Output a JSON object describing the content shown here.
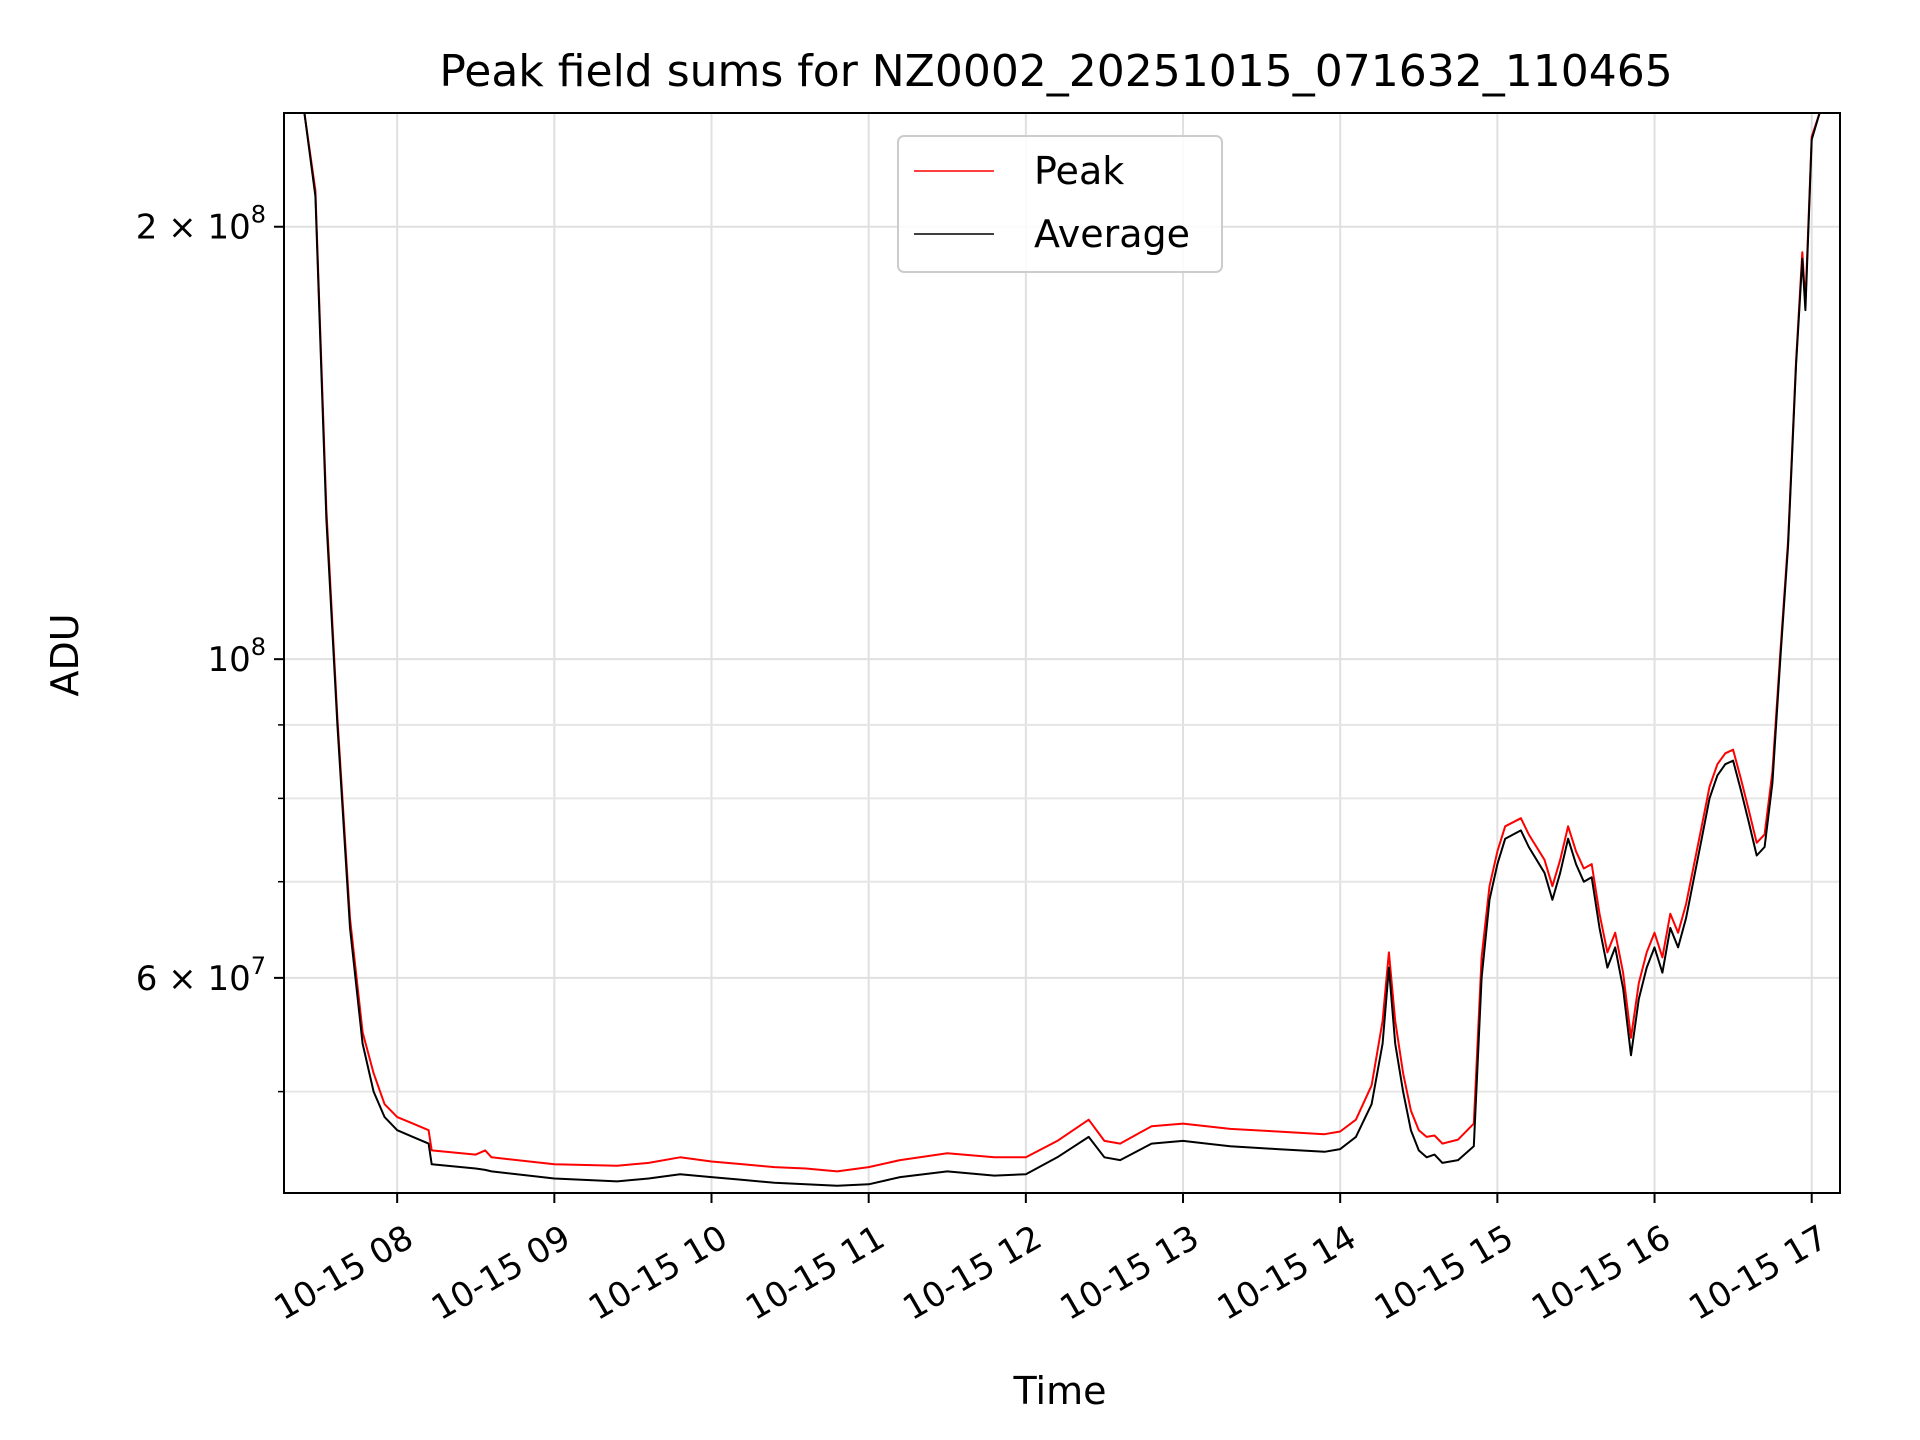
{
  "chart_data": {
    "type": "line",
    "title": "Peak field sums for NZ0002_20251015_071632_110465",
    "xlabel": "Time",
    "ylabel": "ADU",
    "yscale": "log",
    "xlim": [
      7.28,
      17.18
    ],
    "ylim": [
      42500000,
      240000000
    ],
    "grid": true,
    "legend_position": "upper-center",
    "x_ticks": [
      {
        "value": 8,
        "label": "10-15 08"
      },
      {
        "value": 9,
        "label": "10-15 09"
      },
      {
        "value": 10,
        "label": "10-15 10"
      },
      {
        "value": 11,
        "label": "10-15 11"
      },
      {
        "value": 12,
        "label": "10-15 12"
      },
      {
        "value": 13,
        "label": "10-15 13"
      },
      {
        "value": 14,
        "label": "10-15 14"
      },
      {
        "value": 15,
        "label": "10-15 15"
      },
      {
        "value": 16,
        "label": "10-15 16"
      },
      {
        "value": 17,
        "label": "10-15 17"
      }
    ],
    "y_major_ticks": [
      {
        "value": 200000000,
        "base": "2 × 10",
        "exp": "8"
      },
      {
        "value": 100000000,
        "base": "10",
        "exp": "8"
      },
      {
        "value": 60000000,
        "base": "6 × 10",
        "exp": "7"
      }
    ],
    "y_minor_ticks": [
      50000000,
      70000000,
      80000000,
      90000000
    ],
    "legend": [
      "Peak",
      "Average"
    ],
    "series": [
      {
        "name": "Average",
        "color": "#000000",
        "x": [
          7.41,
          7.48,
          7.55,
          7.62,
          7.7,
          7.78,
          7.85,
          7.92,
          8.0,
          8.1,
          8.2,
          8.22,
          8.5,
          8.56,
          8.6,
          9.0,
          9.4,
          9.6,
          9.8,
          10.0,
          10.2,
          10.4,
          10.6,
          10.8,
          11.0,
          11.2,
          11.5,
          11.8,
          12.0,
          12.2,
          12.4,
          12.5,
          12.6,
          12.8,
          13.0,
          13.3,
          13.6,
          13.9,
          14.0,
          14.1,
          14.2,
          14.27,
          14.31,
          14.35,
          14.4,
          14.45,
          14.5,
          14.55,
          14.6,
          14.65,
          14.75,
          14.85,
          14.9,
          14.95,
          15.0,
          15.05,
          15.15,
          15.2,
          15.3,
          15.35,
          15.4,
          15.45,
          15.5,
          15.55,
          15.6,
          15.65,
          15.7,
          15.75,
          15.8,
          15.85,
          15.9,
          15.95,
          16.0,
          16.05,
          16.1,
          16.15,
          16.2,
          16.3,
          16.35,
          16.4,
          16.45,
          16.5,
          16.55,
          16.6,
          16.65,
          16.7,
          16.75,
          16.8,
          16.85,
          16.9,
          16.94,
          16.96,
          17.0,
          17.05
        ],
        "values": [
          240000000,
          210000000,
          125000000,
          90000000,
          65000000,
          54000000,
          50000000,
          48000000,
          47000000,
          46500000,
          46000000,
          44500000,
          44200000,
          44100000,
          44000000,
          43500000,
          43300000,
          43500000,
          43800000,
          43600000,
          43400000,
          43200000,
          43100000,
          43000000,
          43100000,
          43600000,
          44000000,
          43700000,
          43800000,
          45000000,
          46500000,
          45000000,
          44800000,
          46000000,
          46200000,
          45800000,
          45600000,
          45400000,
          45600000,
          46500000,
          49000000,
          54000000,
          61000000,
          54000000,
          50000000,
          47000000,
          45500000,
          45000000,
          45200000,
          44600000,
          44800000,
          45800000,
          60000000,
          68000000,
          72000000,
          75000000,
          76000000,
          74000000,
          71000000,
          68000000,
          71000000,
          75000000,
          72000000,
          70000000,
          70500000,
          65000000,
          61000000,
          63000000,
          59000000,
          53000000,
          58000000,
          61000000,
          63000000,
          60500000,
          65000000,
          63000000,
          66000000,
          75000000,
          80000000,
          83000000,
          84500000,
          85000000,
          81000000,
          77000000,
          73000000,
          74000000,
          82000000,
          100000000,
          120000000,
          160000000,
          190000000,
          175000000,
          230000000,
          240000000
        ]
      },
      {
        "name": "Peak",
        "color": "#ff0000",
        "x": [
          7.41,
          7.48,
          7.55,
          7.62,
          7.7,
          7.78,
          7.85,
          7.92,
          8.0,
          8.1,
          8.2,
          8.22,
          8.5,
          8.56,
          8.6,
          9.0,
          9.4,
          9.6,
          9.8,
          10.0,
          10.2,
          10.4,
          10.6,
          10.8,
          11.0,
          11.2,
          11.5,
          11.8,
          12.0,
          12.2,
          12.4,
          12.5,
          12.6,
          12.8,
          13.0,
          13.3,
          13.6,
          13.9,
          14.0,
          14.1,
          14.2,
          14.27,
          14.31,
          14.35,
          14.4,
          14.45,
          14.5,
          14.55,
          14.6,
          14.65,
          14.75,
          14.85,
          14.9,
          14.95,
          15.0,
          15.05,
          15.15,
          15.2,
          15.3,
          15.35,
          15.4,
          15.45,
          15.5,
          15.55,
          15.6,
          15.65,
          15.7,
          15.75,
          15.8,
          15.85,
          15.9,
          15.95,
          16.0,
          16.05,
          16.1,
          16.15,
          16.2,
          16.3,
          16.35,
          16.4,
          16.45,
          16.5,
          16.55,
          16.6,
          16.65,
          16.7,
          16.75,
          16.8,
          16.85,
          16.9,
          16.94,
          16.96,
          17.0,
          17.05
        ],
        "values": [
          240000000,
          212000000,
          127000000,
          91000000,
          66000000,
          55000000,
          51500000,
          49000000,
          48000000,
          47500000,
          47000000,
          45500000,
          45200000,
          45500000,
          45000000,
          44500000,
          44400000,
          44600000,
          45000000,
          44700000,
          44500000,
          44300000,
          44200000,
          44000000,
          44300000,
          44800000,
          45300000,
          45000000,
          45000000,
          46200000,
          47800000,
          46200000,
          46000000,
          47300000,
          47500000,
          47100000,
          46900000,
          46700000,
          46900000,
          47800000,
          50500000,
          56000000,
          62500000,
          56000000,
          51500000,
          48500000,
          47000000,
          46500000,
          46600000,
          46000000,
          46300000,
          47500000,
          62000000,
          69500000,
          73500000,
          76500000,
          77500000,
          75500000,
          72500000,
          69500000,
          72500000,
          76500000,
          73500000,
          71500000,
          72000000,
          66500000,
          62500000,
          64500000,
          60500000,
          54500000,
          59500000,
          62500000,
          64500000,
          62000000,
          66500000,
          64500000,
          67500000,
          76500000,
          81500000,
          84500000,
          86000000,
          86500000,
          82500000,
          78500000,
          74500000,
          75500000,
          83500000,
          101000000,
          121000000,
          161000000,
          192000000,
          177000000,
          231000000,
          240000000
        ]
      }
    ]
  }
}
